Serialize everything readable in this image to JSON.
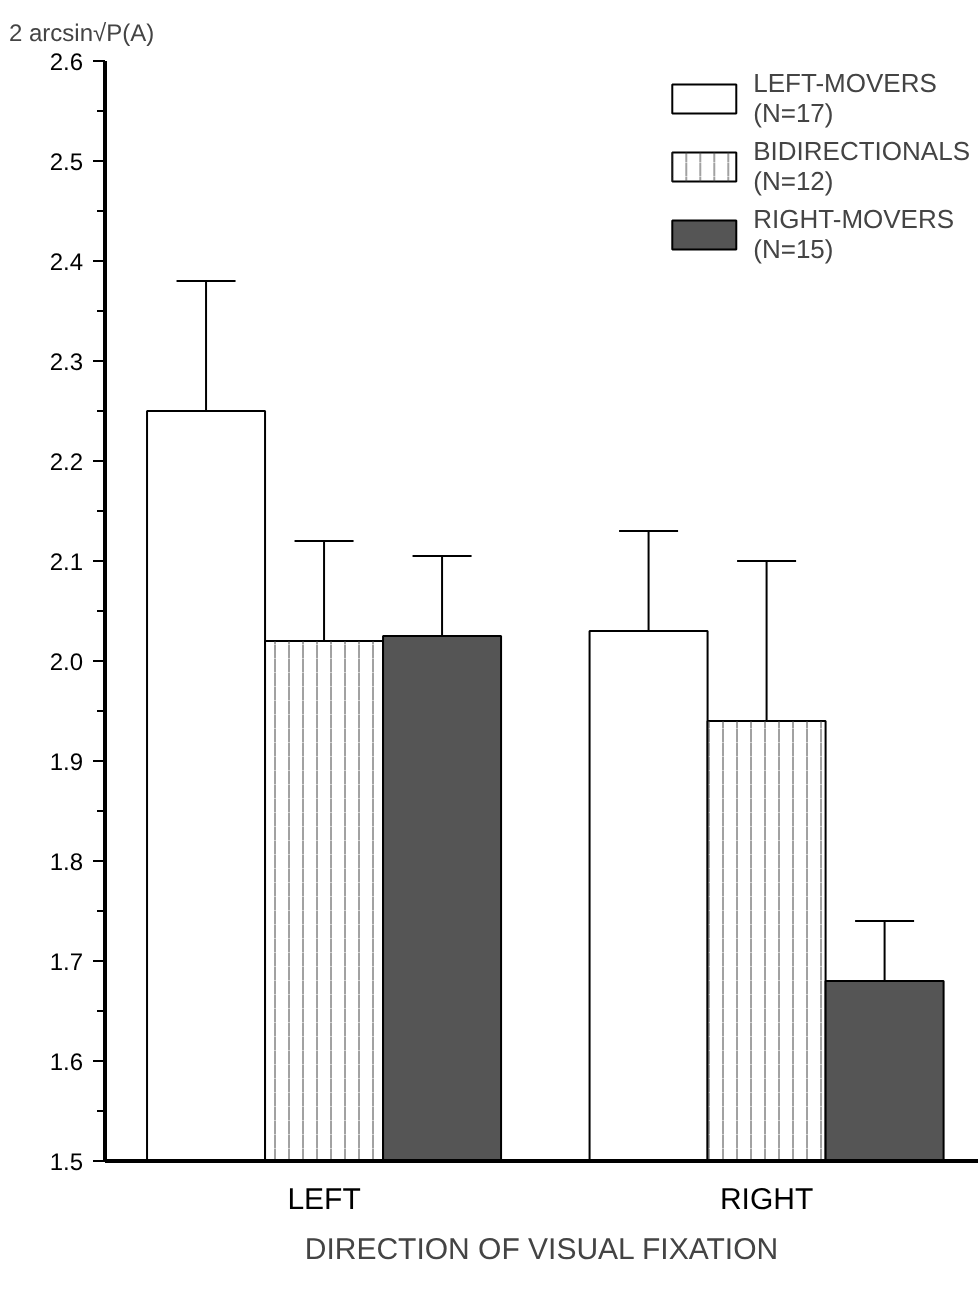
{
  "chart_data": {
    "type": "bar",
    "ylabel": "2 arcsin√P(A)",
    "xlabel": "DIRECTION OF VISUAL FIXATION",
    "categories": [
      "LEFT",
      "RIGHT"
    ],
    "series": [
      {
        "name": "LEFT-MOVERS\n(N=17)",
        "color": "#ffffff",
        "values": [
          2.25,
          2.03
        ],
        "errors": [
          [
            2.25,
            2.38
          ],
          [
            2.03,
            2.13
          ]
        ]
      },
      {
        "name": "BIDIRECTIONALS\n(N=12)",
        "color": "#ffffff",
        "values": [
          2.02,
          1.94
        ],
        "errors": [
          [
            2.02,
            2.12
          ],
          [
            1.94,
            2.1
          ]
        ]
      },
      {
        "name": "RIGHT-MOVERS\n(N=15)",
        "color": "#555555",
        "values": [
          2.025,
          1.68
        ],
        "errors": [
          [
            2.025,
            2.105
          ],
          [
            1.68,
            1.74
          ]
        ]
      }
    ],
    "ylim": [
      1.5,
      2.6
    ],
    "yticks": [
      1.5,
      1.6,
      1.7,
      1.8,
      1.9,
      {
        "value": 2,
        "label": "2.0"
      },
      2.1,
      2.2,
      2.3,
      2.4,
      2.5,
      2.6
    ],
    "grid": false,
    "legend": "top right"
  }
}
